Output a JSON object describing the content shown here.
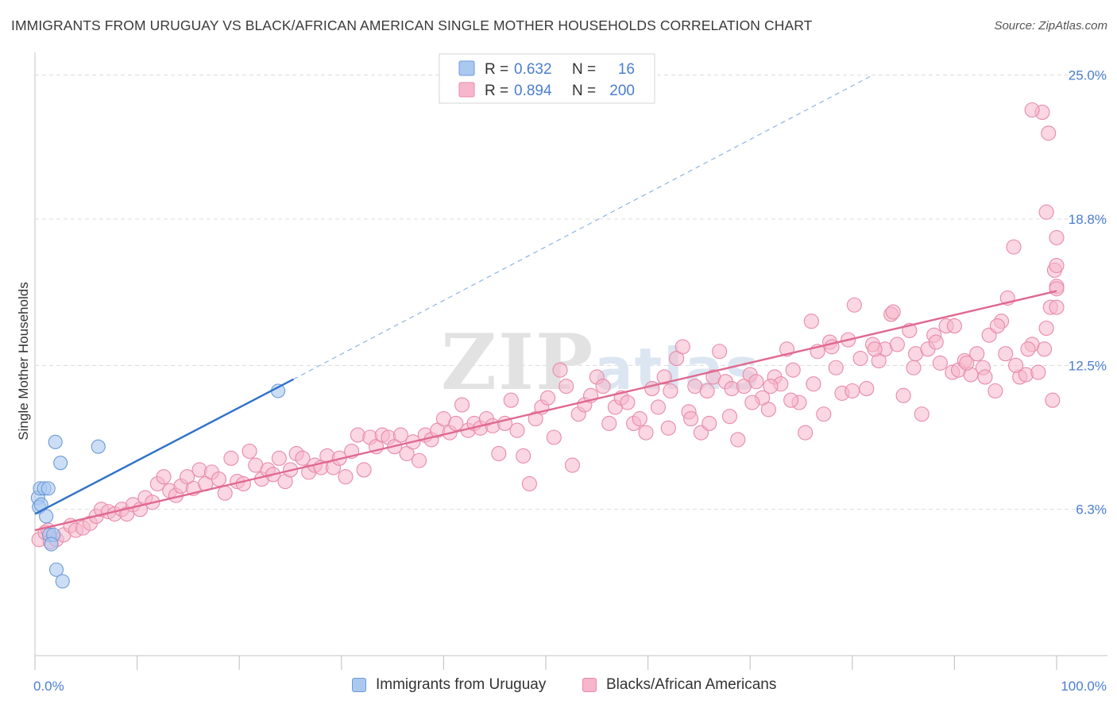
{
  "title": "IMMIGRANTS FROM URUGUAY VS BLACK/AFRICAN AMERICAN SINGLE MOTHER HOUSEHOLDS CORRELATION CHART",
  "source": "Source: ZipAtlas.com",
  "watermark": "ZIPatlas",
  "colors": {
    "blue_fill": "#aac8f0",
    "blue_stroke": "#6a9ad8",
    "blue_line": "#2f72c8",
    "pink_fill": "#f6b6cb",
    "pink_stroke": "#e88aaa",
    "pink_line": "#e06890",
    "label_blue": "#4a7ecf",
    "grid": "#dcdcdc"
  },
  "legend": {
    "rows": [
      {
        "r_label": "R =",
        "r_value": "0.632",
        "n_label": "N =",
        "n_value": "16"
      },
      {
        "r_label": "R =",
        "r_value": "0.894",
        "n_label": "N =",
        "n_value": "200"
      }
    ]
  },
  "bottom_legend": {
    "series1": "Immigrants from Uruguay",
    "series2": "Blacks/African Americans"
  },
  "chart_data": {
    "type": "scatter",
    "xlabel": "",
    "ylabel": "Single Mother Households",
    "xlim": [
      0,
      100
    ],
    "ylim": [
      0,
      25.5
    ],
    "x_tick_labels": [
      {
        "value": 0,
        "label": "0.0%"
      },
      {
        "value": 100,
        "label": "100.0%"
      }
    ],
    "y_tick_labels": [
      {
        "value": 6.3,
        "label": "6.3%"
      },
      {
        "value": 12.5,
        "label": "12.5%"
      },
      {
        "value": 18.8,
        "label": "18.8%"
      },
      {
        "value": 25.0,
        "label": "25.0%"
      }
    ],
    "series": [
      {
        "name": "Immigrants from Uruguay",
        "color": "#aac8f0",
        "R": 0.632,
        "N": 16,
        "trend": {
          "x0": 0,
          "y0": 6.1,
          "x1": 25.3,
          "y1": 11.9,
          "dash_to_x": 82,
          "dash_to_y": 25.0
        },
        "points": [
          [
            0.3,
            6.8
          ],
          [
            0.5,
            7.2
          ],
          [
            0.4,
            6.4
          ],
          [
            0.6,
            6.5
          ],
          [
            0.9,
            7.2
          ],
          [
            1.3,
            7.2
          ],
          [
            1.1,
            6.0
          ],
          [
            1.4,
            5.2
          ],
          [
            1.8,
            5.2
          ],
          [
            1.6,
            4.8
          ],
          [
            2.0,
            9.2
          ],
          [
            2.5,
            8.3
          ],
          [
            6.2,
            9.0
          ],
          [
            23.8,
            11.4
          ],
          [
            2.1,
            3.7
          ],
          [
            2.7,
            3.2
          ]
        ]
      },
      {
        "name": "Blacks/African Americans",
        "color": "#f6b6cb",
        "R": 0.894,
        "N": 200,
        "trend": {
          "x0": 0,
          "y0": 5.4,
          "x1": 100,
          "y1": 15.7
        },
        "points": [
          [
            0.4,
            5.0
          ],
          [
            1.0,
            5.3
          ],
          [
            1.5,
            4.9
          ],
          [
            2.1,
            5.0
          ],
          [
            1.3,
            5.4
          ],
          [
            2.8,
            5.2
          ],
          [
            3.5,
            5.6
          ],
          [
            4.0,
            5.4
          ],
          [
            4.7,
            5.5
          ],
          [
            5.4,
            5.7
          ],
          [
            6.0,
            6.0
          ],
          [
            6.5,
            6.3
          ],
          [
            7.2,
            6.2
          ],
          [
            7.8,
            6.1
          ],
          [
            8.5,
            6.3
          ],
          [
            9.0,
            6.1
          ],
          [
            9.6,
            6.5
          ],
          [
            10.3,
            6.3
          ],
          [
            10.8,
            6.8
          ],
          [
            11.5,
            6.6
          ],
          [
            12.0,
            7.4
          ],
          [
            12.6,
            7.7
          ],
          [
            13.2,
            7.1
          ],
          [
            13.8,
            6.9
          ],
          [
            14.3,
            7.3
          ],
          [
            14.9,
            7.7
          ],
          [
            15.5,
            7.2
          ],
          [
            16.1,
            8.0
          ],
          [
            16.7,
            7.4
          ],
          [
            17.3,
            7.9
          ],
          [
            18.0,
            7.6
          ],
          [
            18.6,
            7.0
          ],
          [
            19.2,
            8.5
          ],
          [
            19.8,
            7.5
          ],
          [
            20.4,
            7.4
          ],
          [
            21.0,
            8.8
          ],
          [
            21.6,
            8.2
          ],
          [
            22.2,
            7.6
          ],
          [
            22.8,
            8.0
          ],
          [
            23.3,
            7.8
          ],
          [
            23.9,
            8.5
          ],
          [
            24.5,
            7.5
          ],
          [
            25.0,
            8.0
          ],
          [
            25.6,
            8.7
          ],
          [
            26.2,
            8.5
          ],
          [
            26.8,
            7.9
          ],
          [
            27.4,
            8.2
          ],
          [
            28.0,
            8.1
          ],
          [
            28.6,
            8.6
          ],
          [
            29.2,
            8.1
          ],
          [
            29.8,
            8.5
          ],
          [
            30.4,
            7.7
          ],
          [
            31.0,
            8.8
          ],
          [
            31.6,
            9.5
          ],
          [
            32.2,
            8.0
          ],
          [
            32.8,
            9.4
          ],
          [
            33.4,
            9.0
          ],
          [
            34.0,
            9.5
          ],
          [
            34.6,
            9.4
          ],
          [
            35.2,
            9.0
          ],
          [
            35.8,
            9.5
          ],
          [
            36.4,
            8.7
          ],
          [
            37.0,
            9.2
          ],
          [
            37.6,
            8.4
          ],
          [
            38.2,
            9.5
          ],
          [
            38.8,
            9.3
          ],
          [
            39.4,
            9.7
          ],
          [
            40.0,
            10.2
          ],
          [
            40.6,
            9.6
          ],
          [
            41.2,
            10.0
          ],
          [
            41.8,
            10.8
          ],
          [
            42.4,
            9.7
          ],
          [
            43.0,
            10.0
          ],
          [
            43.6,
            9.8
          ],
          [
            44.2,
            10.2
          ],
          [
            44.8,
            9.9
          ],
          [
            45.4,
            8.7
          ],
          [
            46.0,
            10.0
          ],
          [
            46.6,
            11.0
          ],
          [
            47.2,
            9.7
          ],
          [
            47.8,
            8.6
          ],
          [
            48.4,
            7.4
          ],
          [
            49.0,
            10.2
          ],
          [
            49.6,
            10.7
          ],
          [
            50.2,
            11.1
          ],
          [
            50.8,
            9.4
          ],
          [
            51.4,
            12.3
          ],
          [
            52.0,
            11.6
          ],
          [
            52.6,
            8.2
          ],
          [
            53.2,
            10.4
          ],
          [
            53.8,
            10.8
          ],
          [
            54.4,
            11.2
          ],
          [
            55.0,
            12.0
          ],
          [
            55.6,
            11.6
          ],
          [
            56.2,
            10.0
          ],
          [
            56.8,
            10.7
          ],
          [
            57.4,
            11.1
          ],
          [
            58.0,
            10.9
          ],
          [
            58.6,
            10.0
          ],
          [
            59.2,
            10.2
          ],
          [
            59.8,
            9.6
          ],
          [
            60.4,
            11.5
          ],
          [
            61.0,
            10.7
          ],
          [
            61.6,
            12.0
          ],
          [
            62.2,
            11.4
          ],
          [
            62.8,
            12.8
          ],
          [
            63.4,
            13.3
          ],
          [
            64.0,
            10.5
          ],
          [
            64.6,
            11.6
          ],
          [
            65.2,
            9.6
          ],
          [
            65.8,
            11.4
          ],
          [
            66.4,
            12.0
          ],
          [
            67.0,
            13.1
          ],
          [
            67.6,
            11.8
          ],
          [
            68.2,
            11.5
          ],
          [
            68.8,
            9.3
          ],
          [
            69.4,
            11.6
          ],
          [
            70.0,
            12.1
          ],
          [
            70.6,
            11.8
          ],
          [
            71.2,
            11.1
          ],
          [
            71.8,
            10.6
          ],
          [
            72.4,
            12.0
          ],
          [
            73.0,
            11.7
          ],
          [
            73.6,
            13.2
          ],
          [
            74.2,
            12.3
          ],
          [
            74.8,
            10.9
          ],
          [
            75.4,
            9.6
          ],
          [
            76.0,
            14.4
          ],
          [
            76.6,
            13.1
          ],
          [
            77.2,
            10.4
          ],
          [
            77.8,
            13.5
          ],
          [
            78.4,
            12.4
          ],
          [
            79.0,
            11.3
          ],
          [
            79.6,
            13.6
          ],
          [
            80.2,
            15.1
          ],
          [
            80.8,
            12.8
          ],
          [
            81.4,
            11.5
          ],
          [
            82.0,
            13.4
          ],
          [
            82.6,
            12.7
          ],
          [
            83.2,
            13.2
          ],
          [
            83.8,
            14.7
          ],
          [
            84.4,
            13.4
          ],
          [
            85.0,
            11.2
          ],
          [
            85.6,
            14.0
          ],
          [
            86.2,
            13.0
          ],
          [
            86.8,
            10.4
          ],
          [
            87.4,
            13.2
          ],
          [
            88.0,
            13.8
          ],
          [
            88.6,
            12.6
          ],
          [
            89.2,
            14.2
          ],
          [
            89.8,
            12.2
          ],
          [
            90.4,
            12.3
          ],
          [
            91.0,
            12.7
          ],
          [
            91.6,
            12.1
          ],
          [
            92.2,
            13.0
          ],
          [
            92.8,
            12.4
          ],
          [
            93.4,
            13.8
          ],
          [
            94.0,
            11.4
          ],
          [
            94.6,
            14.4
          ],
          [
            95.2,
            15.4
          ],
          [
            95.8,
            17.6
          ],
          [
            96.4,
            12.0
          ],
          [
            97.0,
            12.1
          ],
          [
            97.6,
            13.4
          ],
          [
            98.2,
            12.2
          ],
          [
            98.8,
            13.2
          ],
          [
            99.0,
            14.1
          ],
          [
            99.4,
            15.0
          ],
          [
            99.6,
            11.0
          ],
          [
            99.8,
            16.6
          ],
          [
            100.0,
            15.0
          ],
          [
            97.2,
            13.2
          ],
          [
            96.0,
            12.5
          ],
          [
            95.0,
            13.0
          ],
          [
            94.2,
            14.2
          ],
          [
            93.0,
            12.0
          ],
          [
            91.2,
            12.6
          ],
          [
            90.0,
            14.2
          ],
          [
            88.2,
            13.5
          ],
          [
            86.0,
            12.4
          ],
          [
            84.0,
            14.8
          ],
          [
            82.2,
            13.2
          ],
          [
            80.0,
            11.4
          ],
          [
            78.0,
            13.3
          ],
          [
            76.2,
            11.7
          ],
          [
            74.0,
            11.0
          ],
          [
            72.0,
            11.6
          ],
          [
            70.2,
            10.9
          ],
          [
            68.0,
            10.3
          ],
          [
            66.0,
            10.0
          ],
          [
            64.2,
            10.2
          ],
          [
            62.0,
            9.8
          ],
          [
            100.0,
            18.0
          ],
          [
            100.0,
            16.8
          ],
          [
            99.0,
            19.1
          ],
          [
            99.2,
            22.5
          ],
          [
            98.6,
            23.4
          ],
          [
            97.6,
            23.5
          ],
          [
            100.0,
            15.9
          ],
          [
            100.0,
            15.8
          ]
        ]
      }
    ]
  }
}
